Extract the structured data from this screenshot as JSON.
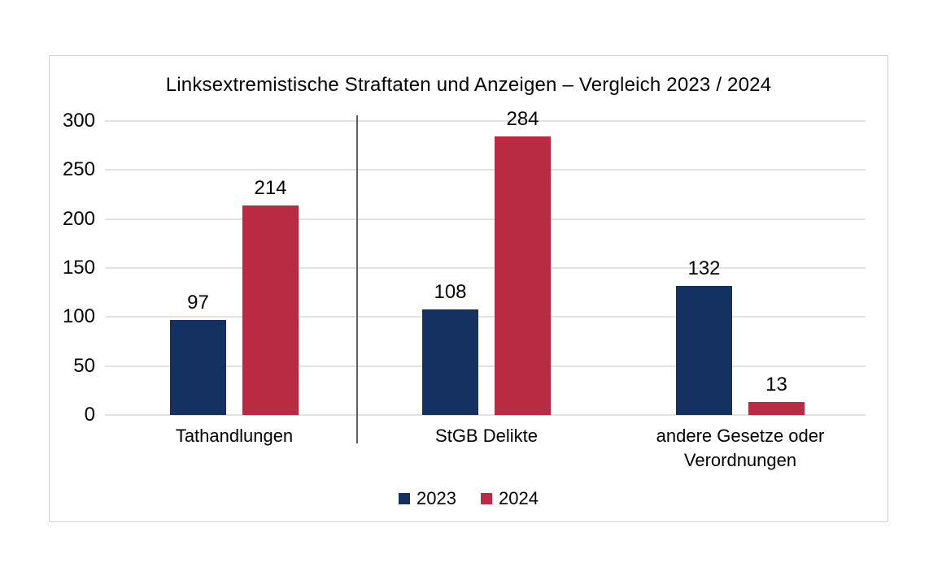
{
  "chart_data": {
    "type": "bar",
    "title": "Linksextremistische Straftaten und Anzeigen – Vergleich 2023 / 2024",
    "categories": [
      "Tathandlungen",
      "StGB Delikte",
      "andere Gesetze oder Verordnungen"
    ],
    "series": [
      {
        "name": "2023",
        "color": "#143162",
        "values": [
          97,
          108,
          132
        ]
      },
      {
        "name": "2024",
        "color": "#b82b42",
        "values": [
          214,
          284,
          13
        ]
      }
    ],
    "ylim": [
      0,
      300
    ],
    "yticks": [
      "300",
      "250",
      "200",
      "150",
      "100",
      "50",
      "0"
    ],
    "xlabel": "",
    "ylabel": "",
    "grid": "horizontal",
    "legend_position": "bottom",
    "divider_after_category_index": 0
  },
  "colors": {
    "gridline": "#e2e2e2",
    "card_border": "#d2d2d2",
    "divider": "#5f5f5f",
    "text": "#000000",
    "background": "#ffffff"
  }
}
